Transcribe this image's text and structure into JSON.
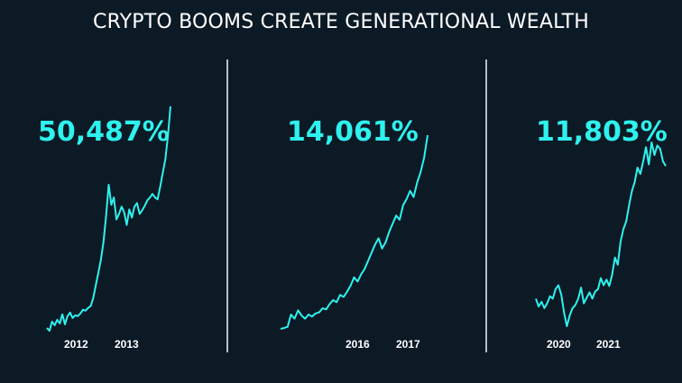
{
  "title": "CRYPTO BOOMS CREATE GENERATIONAL WEALTH",
  "colors": {
    "background": "#0c1a26",
    "line": "#2ef2ee",
    "divider": "#b9c0c6",
    "text": "#ffffff"
  },
  "chart_data": [
    {
      "type": "line",
      "annotation": "50,487%",
      "x_ticks": [
        "2012",
        "2013"
      ],
      "x": [
        0,
        1,
        2,
        3,
        4,
        5,
        6,
        7,
        8,
        9,
        10,
        11,
        12,
        13,
        14,
        15,
        16,
        17,
        18,
        19,
        20,
        21,
        22,
        23,
        24,
        25,
        26,
        27,
        28,
        29,
        30,
        31,
        32,
        33,
        34,
        35,
        36,
        37,
        38,
        39,
        40,
        41,
        42,
        43,
        44,
        45,
        46,
        47,
        48
      ],
      "values": [
        5,
        2,
        12,
        8,
        14,
        10,
        20,
        9,
        18,
        22,
        16,
        19,
        18,
        21,
        25,
        24,
        27,
        29,
        38,
        52,
        66,
        80,
        100,
        128,
        162,
        140,
        148,
        124,
        130,
        138,
        132,
        118,
        135,
        126,
        138,
        142,
        130,
        134,
        139,
        145,
        148,
        152,
        148,
        146,
        160,
        175,
        190,
        215,
        248
      ]
    },
    {
      "type": "line",
      "annotation": "14,061%",
      "x_ticks": [
        "2016",
        "2017"
      ],
      "x": [
        0,
        1,
        2,
        3,
        4,
        5,
        6,
        7,
        8,
        9,
        10,
        11,
        12,
        13,
        14,
        15,
        16,
        17,
        18,
        19,
        20,
        21,
        22,
        23,
        24,
        25,
        26,
        27,
        28,
        29,
        30,
        31,
        32,
        33,
        34,
        35,
        36,
        37,
        38,
        39,
        40,
        41,
        42
      ],
      "values": [
        2,
        3,
        4,
        16,
        12,
        20,
        15,
        12,
        16,
        14,
        17,
        18,
        22,
        21,
        26,
        30,
        28,
        35,
        33,
        38,
        44,
        52,
        48,
        55,
        60,
        68,
        76,
        84,
        90,
        80,
        86,
        96,
        104,
        112,
        108,
        122,
        128,
        136,
        130,
        144,
        154,
        168,
        190
      ]
    },
    {
      "type": "line",
      "annotation": "11,803%",
      "x_ticks": [
        "2020",
        "2021"
      ],
      "x": [
        0,
        1,
        2,
        3,
        4,
        5,
        6,
        7,
        8,
        9,
        10,
        11,
        12,
        13,
        14,
        15,
        16,
        17,
        18,
        19,
        20,
        21,
        22,
        23,
        24,
        25,
        26,
        27,
        28,
        29,
        30,
        31,
        32,
        33,
        34,
        35,
        36,
        37,
        38,
        39,
        40,
        41,
        42,
        43,
        44,
        45,
        46
      ],
      "values": [
        30,
        20,
        26,
        18,
        24,
        33,
        30,
        42,
        47,
        35,
        12,
        -5,
        9,
        18,
        22,
        30,
        44,
        24,
        31,
        38,
        30,
        39,
        42,
        56,
        47,
        54,
        46,
        60,
        82,
        73,
        102,
        118,
        128,
        148,
        166,
        178,
        196,
        188,
        204,
        222,
        200,
        228,
        212,
        224,
        220,
        204,
        198
      ]
    }
  ]
}
